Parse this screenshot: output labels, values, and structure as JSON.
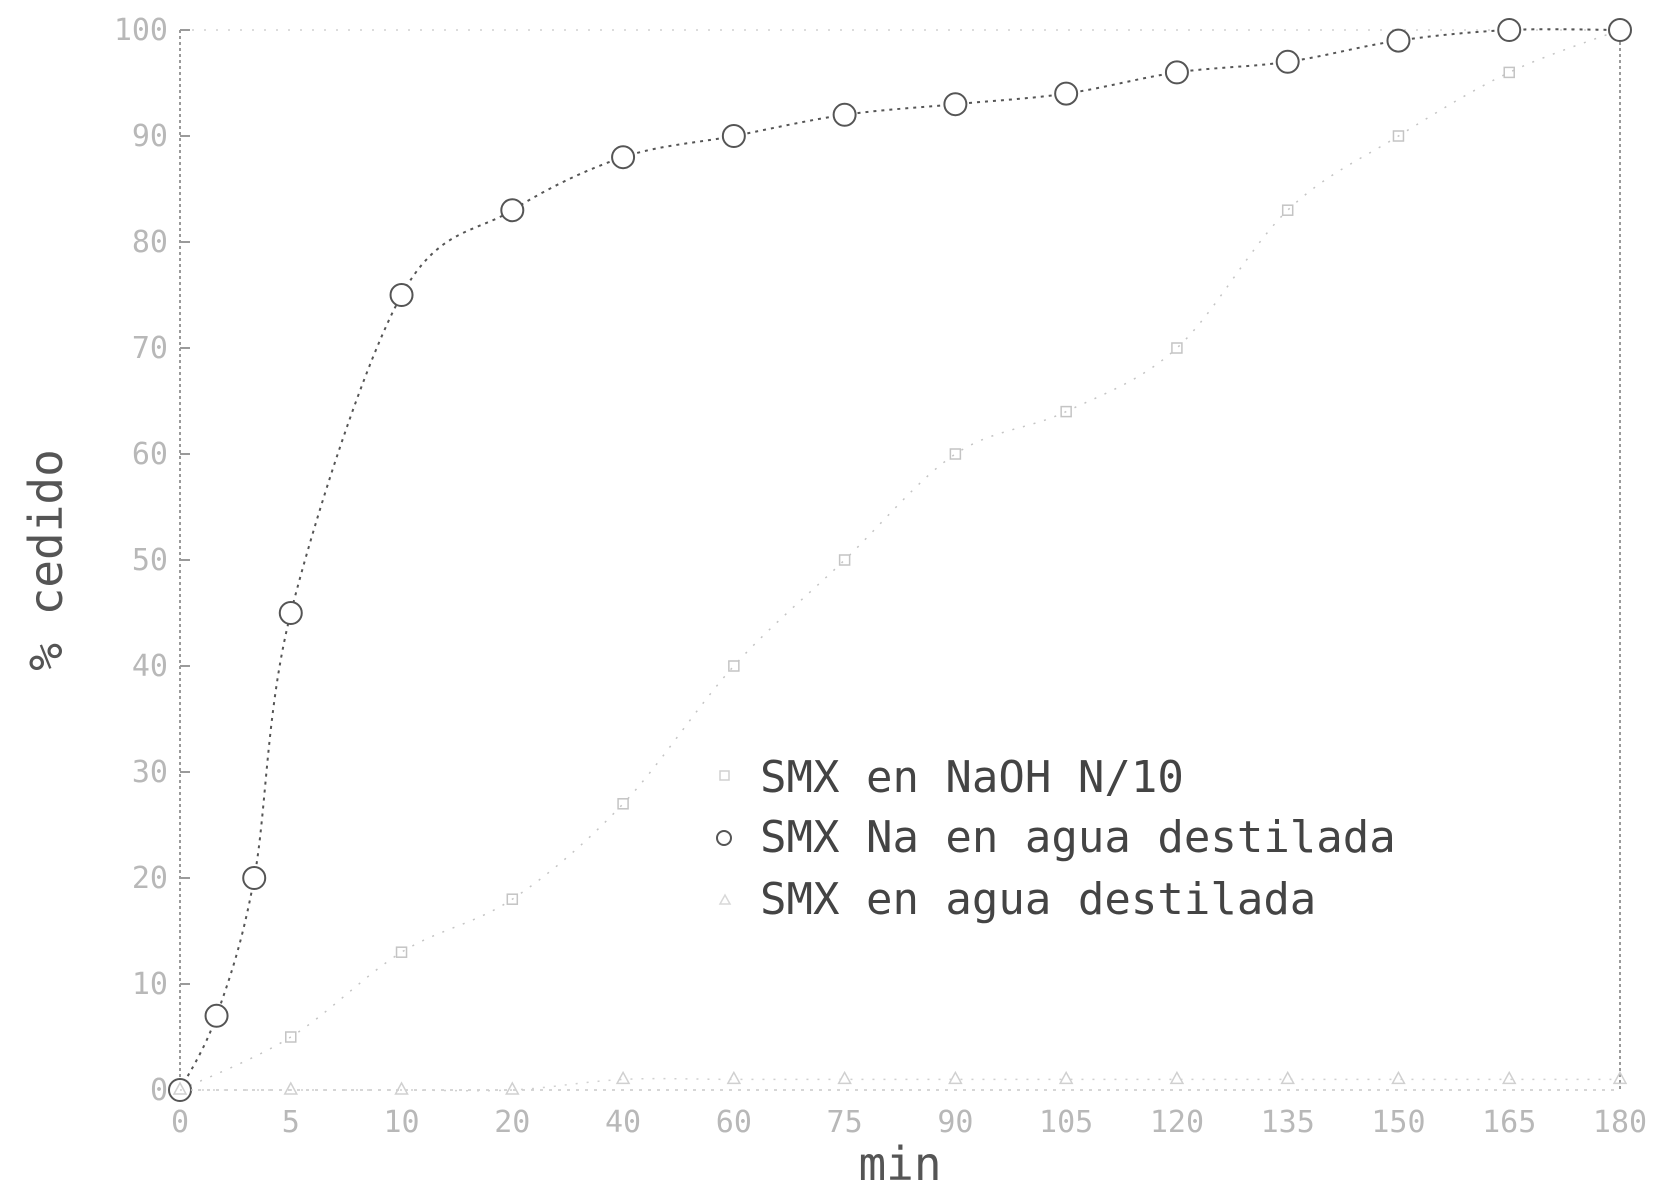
{
  "chart_data": {
    "type": "line",
    "title": "",
    "xlabel": "min",
    "ylabel": "% cedido",
    "x_ticks": [
      "0",
      "5",
      "10",
      "20",
      "40",
      "60",
      "75",
      "90",
      "105",
      "120",
      "135",
      "150",
      "165",
      "180"
    ],
    "y_ticks": [
      "0",
      "10",
      "20",
      "30",
      "40",
      "50",
      "60",
      "70",
      "80",
      "90",
      "100"
    ],
    "ylim": [
      0,
      100
    ],
    "grid": false,
    "legend": "center-right",
    "series": [
      {
        "name": "SMX en NaOH N/10",
        "marker": "square",
        "color": "#c4c4c4",
        "x_index": [
          0,
          1,
          2,
          3,
          4,
          5,
          6,
          7,
          8,
          9,
          10,
          11,
          12,
          13
        ],
        "values": [
          0,
          5,
          13,
          18,
          27,
          40,
          50,
          60,
          64,
          70,
          83,
          90,
          96,
          100
        ]
      },
      {
        "name": "SMX Na en agua destilada",
        "marker": "circle",
        "color": "#555555",
        "x_index": [
          0,
          0.33,
          0.67,
          1,
          2,
          3,
          4,
          5,
          6,
          7,
          8,
          9,
          10,
          11,
          12,
          13
        ],
        "values": [
          0,
          7,
          20,
          45,
          75,
          83,
          88,
          90,
          92,
          93,
          94,
          96,
          97,
          99,
          100,
          100
        ]
      },
      {
        "name": "SMX en agua destilada",
        "marker": "triangle",
        "color": "#d0d0d0",
        "x_index": [
          0,
          1,
          2,
          3,
          4,
          5,
          6,
          7,
          8,
          9,
          10,
          11,
          12,
          13
        ],
        "values": [
          0,
          0,
          0,
          0,
          1,
          1,
          1,
          1,
          1,
          1,
          1,
          1,
          1,
          1
        ]
      }
    ]
  }
}
